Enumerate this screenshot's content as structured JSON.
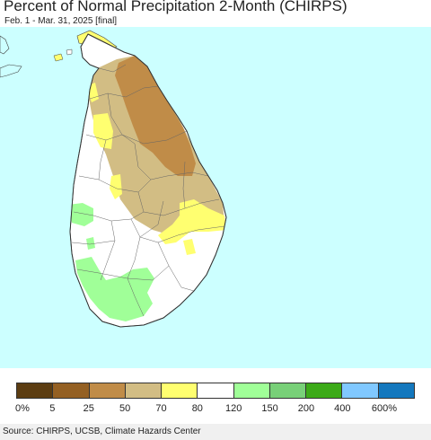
{
  "title": "Percent of Normal Precipitation 2-Month (CHIRPS)",
  "subtitle": "Feb. 1 - Mar. 31, 2025 [final]",
  "map": {
    "region": "Sri Lanka",
    "ocean_color": "#ccffff",
    "boundary_color": "#444444"
  },
  "legend": {
    "colors": [
      "#5c3d12",
      "#946023",
      "#c08c48",
      "#d2bd84",
      "#ffff70",
      "#ffffff",
      "#a0ff98",
      "#78d078",
      "#3caa18",
      "#80c8ff",
      "#1478be"
    ],
    "labels": [
      "0%",
      "5",
      "25",
      "50",
      "70",
      "80",
      "120",
      "150",
      "200",
      "400",
      "600%"
    ]
  },
  "source": "Source: CHIRPS, UCSB, Climate Hazards Center"
}
